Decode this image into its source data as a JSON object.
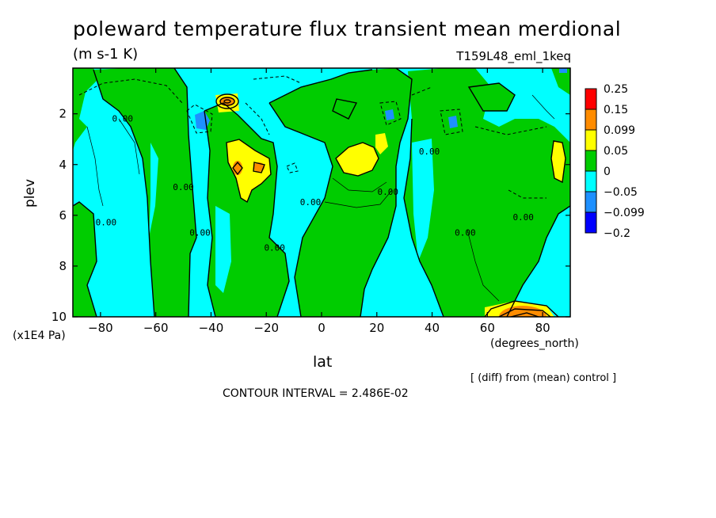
{
  "header": {
    "title": "poleward temperature flux transient mean merdional",
    "units": "(m s-1 K)",
    "experiment": "T159L48_eml_1keq"
  },
  "footer": {
    "diff_note": "[ (diff) from (mean) control ]",
    "contour_interval": "CONTOUR INTERVAL = 2.486E-02"
  },
  "chart_data": {
    "type": "heatmap",
    "title": "poleward temperature flux transient mean merdional",
    "xlabel": "lat",
    "xunit": "(degrees_north)",
    "ylabel": "plev",
    "yunit": "(x1E4 Pa)",
    "xlim": [
      -90,
      90
    ],
    "ylim": [
      10,
      0.2
    ],
    "xticks": [
      -80,
      -60,
      -40,
      -20,
      0,
      20,
      40,
      60,
      80
    ],
    "xtick_labels": [
      "−80",
      "−60",
      "−40",
      "−20",
      "0",
      "20",
      "40",
      "60",
      "80"
    ],
    "yticks": [
      2,
      4,
      6,
      8,
      10
    ],
    "ytick_labels": [
      "2",
      "4",
      "6",
      "8",
      "10"
    ],
    "legend": {
      "placement": "right",
      "levels": [
        "0.25",
        "0.15",
        "0.099",
        "0.05",
        "0",
        "−0.05",
        "−0.099",
        "−0.2"
      ],
      "colors": [
        "#ff0000",
        "#ff8c00",
        "#ffff00",
        "#00cc00",
        "#00ffff",
        "#1e90ff",
        "#0000ff"
      ]
    },
    "contour_labels": [
      {
        "text": "0.00",
        "lat": -72,
        "plev": 2.3
      },
      {
        "text": "0.00",
        "lat": -50,
        "plev": 5.0
      },
      {
        "text": "0.00",
        "lat": -44,
        "plev": 6.8
      },
      {
        "text": "0.00",
        "lat": -78,
        "plev": 6.4
      },
      {
        "text": "0.00",
        "lat": -17,
        "plev": 7.4
      },
      {
        "text": "0.00",
        "lat": -4,
        "plev": 5.6
      },
      {
        "text": "0.00",
        "lat": 24,
        "plev": 5.2
      },
      {
        "text": "0.00",
        "lat": 39,
        "plev": 3.6
      },
      {
        "text": "0.00",
        "lat": 52,
        "plev": 6.8
      },
      {
        "text": "0.00",
        "lat": 73,
        "plev": 6.2
      }
    ],
    "regions": [
      {
        "level": "0 to 0.05",
        "color": "#00cc00",
        "lat": [
          -60,
          -40
        ],
        "plev": [
          1.5,
          10
        ]
      },
      {
        "level": "0 to 0.05",
        "color": "#00cc00",
        "lat": [
          -34,
          -4
        ],
        "plev": [
          1.2,
          10
        ]
      },
      {
        "level": "0 to 0.05",
        "color": "#00cc00",
        "lat": [
          6,
          30
        ],
        "plev": [
          0.8,
          10
        ]
      },
      {
        "level": "0 to 0.05",
        "color": "#00cc00",
        "lat": [
          56,
          82
        ],
        "plev": [
          1.5,
          10
        ]
      },
      {
        "level": "0.05 to 0.099",
        "color": "#ffff00",
        "lat": [
          -34,
          -20
        ],
        "plev": [
          3.2,
          5.3
        ]
      },
      {
        "level": "0.05 to 0.099",
        "color": "#ffff00",
        "lat": [
          6,
          24
        ],
        "plev": [
          3.4,
          4.4
        ]
      },
      {
        "level": "0.05 to 0.099",
        "color": "#ffff00",
        "lat": [
          82,
          88
        ],
        "plev": [
          3.2,
          4.8
        ]
      },
      {
        "level": "0.099 to 0.15",
        "color": "#ff8c00",
        "lat": [
          62,
          80
        ],
        "plev": [
          9.4,
          10
        ]
      },
      {
        "level": "0.099 to 0.15",
        "color": "#ff8c00",
        "lat": [
          -38,
          -34
        ],
        "plev": [
          1.2,
          1.5
        ]
      },
      {
        "level": "-0.099 to -0.05",
        "color": "#1e90ff",
        "lat": [
          -48,
          -42
        ],
        "plev": [
          1.8,
          2.5
        ]
      },
      {
        "level": "-0.099 to -0.05",
        "color": "#1e90ff",
        "lat": [
          44,
          48
        ],
        "plev": [
          2.0,
          2.6
        ]
      }
    ]
  }
}
